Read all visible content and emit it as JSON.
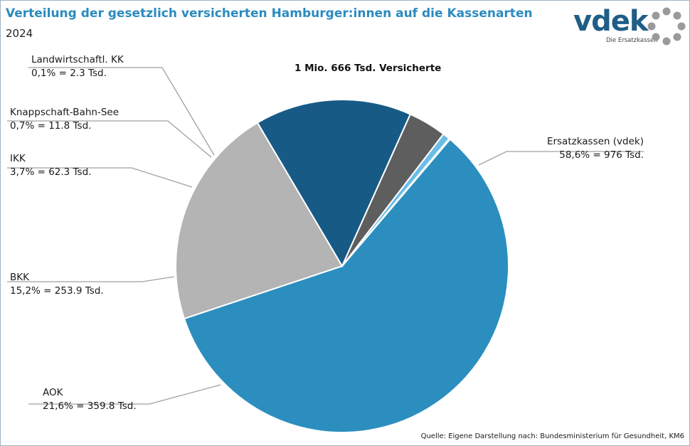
{
  "header": {
    "title": "Verteilung der gesetzlich versicherten Hamburger:innen auf die Kassenarten",
    "subtitle": "2024"
  },
  "logo": {
    "wordmark": "vdek",
    "tagline": "Die Ersatzkassen"
  },
  "total_label": "1 Mio. 666 Tsd. Versicherte",
  "source": "Quelle: Eigene Darstellung nach: Bundesministerium für Gesundheit, KM6",
  "colors": {
    "title": "#2a8bbf",
    "logo": "#1f5e86",
    "leader": "#a0a0a0"
  },
  "chart_data": {
    "type": "pie",
    "title": "Verteilung der gesetzlich versicherten Hamburger:innen auf die Kassenarten",
    "subtitle": "2024",
    "total": "1 Mio. 666 Tsd. Versicherte",
    "slices": [
      {
        "name": "Ersatzkassen (vdek)",
        "percent": 58.6,
        "value_tsd": 976,
        "value_label": "58,6% = 976 Tsd.",
        "color": "#2b8ebf"
      },
      {
        "name": "AOK",
        "percent": 21.6,
        "value_tsd": 359.8,
        "value_label": "21,6% = 359.8 Tsd.",
        "color": "#b4b4b4"
      },
      {
        "name": "BKK",
        "percent": 15.2,
        "value_tsd": 253.9,
        "value_label": "15,2% = 253.9 Tsd.",
        "color": "#175a86"
      },
      {
        "name": "IKK",
        "percent": 3.7,
        "value_tsd": 62.3,
        "value_label": "3,7% = 62.3 Tsd.",
        "color": "#5e5e5e"
      },
      {
        "name": "Knappschaft-Bahn-See",
        "percent": 0.7,
        "value_tsd": 11.8,
        "value_label": "0,7% = 11.8 Tsd.",
        "color": "#6cbde6"
      },
      {
        "name": "Landwirtschaftl. KK",
        "percent": 0.1,
        "value_tsd": 2.3,
        "value_label": "0,1% = 2.3 Tsd.",
        "color": "#2f7fb3"
      }
    ]
  }
}
